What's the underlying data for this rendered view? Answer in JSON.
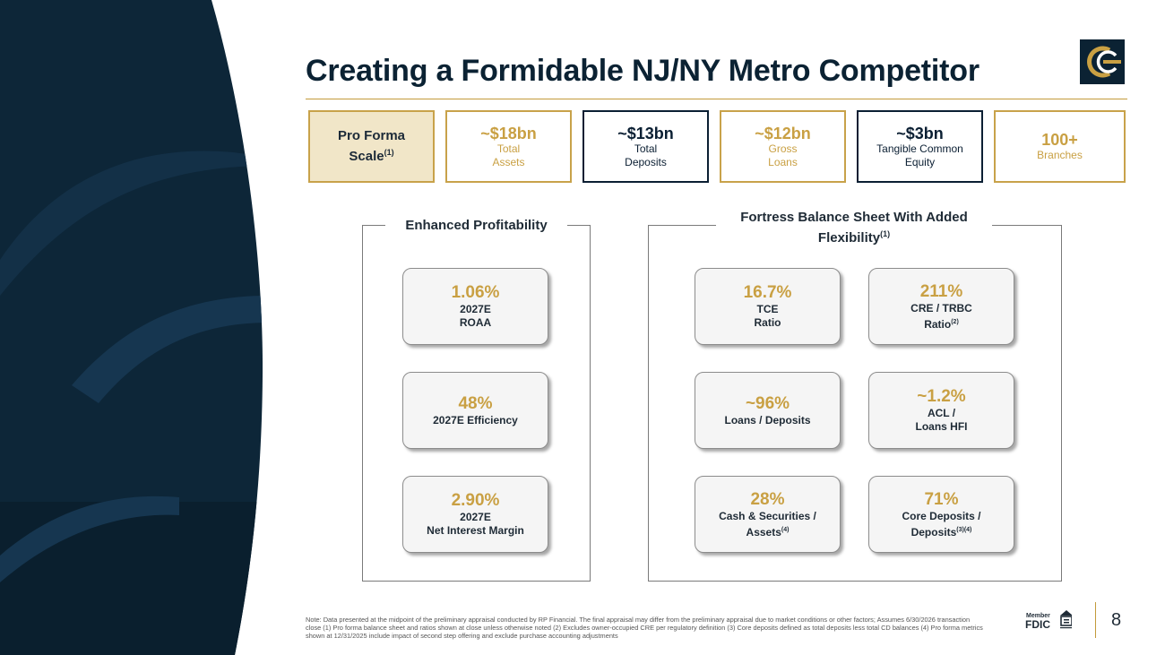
{
  "title": "Creating a Formidable NJ/NY Metro Competitor",
  "colors": {
    "navy": "#0b2233",
    "gold": "#c9a043",
    "lead_fill": "#f1e6c8"
  },
  "scale": {
    "lead_label": "Pro Forma",
    "lead_label2": "Scale",
    "lead_note": "(1)",
    "boxes": [
      {
        "value": "~$18bn",
        "line1": "Total",
        "line2": "Assets"
      },
      {
        "value": "~$13bn",
        "line1": "Total",
        "line2": "Deposits"
      },
      {
        "value": "~$12bn",
        "line1": "Gross",
        "line2": "Loans"
      },
      {
        "value": "~$3bn",
        "line1": "Tangible Common",
        "line2": "Equity"
      },
      {
        "value": "100+",
        "line1": "Branches"
      }
    ]
  },
  "profitability": {
    "title": "Enhanced Profitability",
    "kpis": [
      {
        "value": "1.06%",
        "line1": "2027E",
        "line2": "ROAA"
      },
      {
        "value": "48%",
        "line1": "2027E Efficiency"
      },
      {
        "value": "2.90%",
        "line1": "2027E",
        "line2": "Net Interest Margin"
      }
    ]
  },
  "balance_sheet": {
    "title_line1": "Fortress Balance Sheet With Added",
    "title_line2": "Flexibility",
    "title_note": "(1)",
    "kpis": [
      {
        "value": "16.7%",
        "line1": "TCE",
        "line2": "Ratio"
      },
      {
        "value": "211%",
        "line1": "CRE / TRBC",
        "line2": "Ratio",
        "note": "(2)"
      },
      {
        "value": "~96%",
        "line1": "Loans / Deposits"
      },
      {
        "value": "~1.2%",
        "line1": "ACL /",
        "line2": "Loans HFI"
      },
      {
        "value": "28%",
        "line1": "Cash & Securities /",
        "line2": "Assets",
        "note": "(4)"
      },
      {
        "value": "71%",
        "line1": "Core Deposits /",
        "line2": "Deposits",
        "note": "(3)(4)"
      }
    ]
  },
  "footnote": "Note: Data presented at the midpoint of the preliminary appraisal conducted by RP Financial. The final appraisal may differ from the preliminary appraisal due to market conditions or other factors; Assumes 6/30/2026 transaction close (1) Pro forma balance sheet and ratios shown at close unless otherwise noted (2) Excludes owner-occupied CRE per regulatory definition (3) Core deposits defined as total deposits less total CD balances (4) Pro forma metrics shown at 12/31/2025 include impact of second step offering and exclude purchase accounting adjustments",
  "fdic": {
    "member": "Member",
    "name": "FDIC"
  },
  "page_number": "8"
}
